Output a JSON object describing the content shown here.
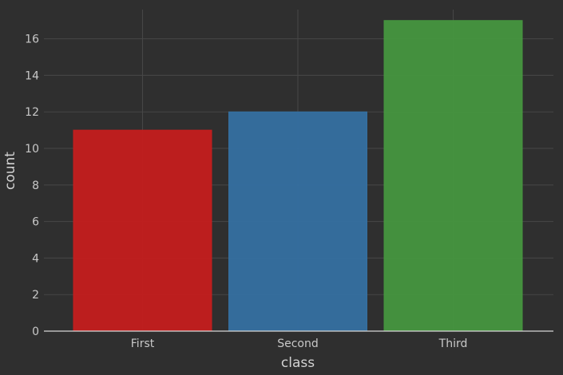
{
  "chart_data": {
    "type": "bar",
    "categories": [
      "First",
      "Second",
      "Third"
    ],
    "values": [
      11,
      12,
      17
    ],
    "colors": [
      "#c41e1e",
      "#3570a1",
      "#46963f"
    ],
    "xlabel": "class",
    "ylabel": "count",
    "ylim": [
      0,
      17.6
    ],
    "yticks": [
      0,
      2,
      4,
      6,
      8,
      10,
      12,
      14,
      16
    ],
    "grid": true,
    "legend": "none",
    "background": "#2f2f2f"
  }
}
